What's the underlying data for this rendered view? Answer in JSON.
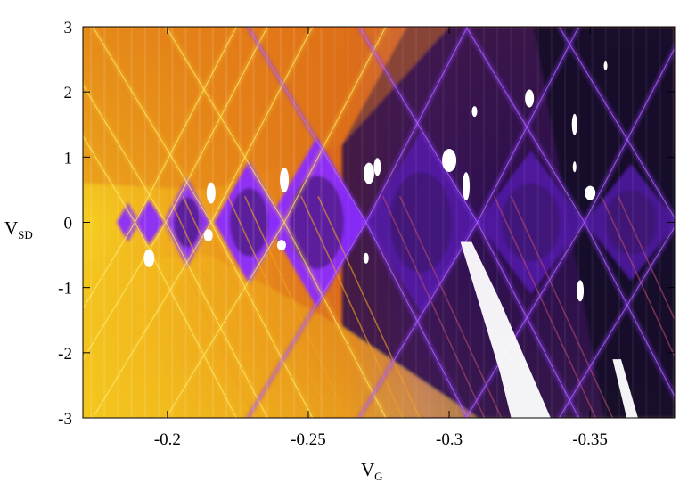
{
  "chart_data": {
    "type": "heatmap",
    "title": "",
    "xlabel": "V",
    "xlabel_sub": "G",
    "ylabel": "V",
    "ylabel_sub": "SD",
    "xlim": [
      -0.17,
      -0.38
    ],
    "ylim": [
      -3,
      3
    ],
    "xticks": [
      {
        "value": -0.2,
        "label": "-0.2"
      },
      {
        "value": -0.25,
        "label": "-0.25"
      },
      {
        "value": -0.3,
        "label": "-0.3"
      },
      {
        "value": -0.35,
        "label": "-0.35"
      }
    ],
    "yticks": [
      {
        "value": 3,
        "label": "3"
      },
      {
        "value": 2,
        "label": "2"
      },
      {
        "value": 1,
        "label": "1"
      },
      {
        "value": 0,
        "label": "0"
      },
      {
        "value": -1,
        "label": "-1"
      },
      {
        "value": -2,
        "label": "-2"
      },
      {
        "value": -3,
        "label": "-3"
      }
    ],
    "colormap": {
      "stops": [
        "#f5d21e",
        "#f0a818",
        "#d9651a",
        "#b03a2e",
        "#8a2cff",
        "#3a1260",
        "#1e0a34"
      ],
      "saturated": "#ffffff"
    },
    "diamonds": [
      {
        "vg": -0.186,
        "half_width_vg": 0.004,
        "height": 0.3
      },
      {
        "vg": -0.1935,
        "half_width_vg": 0.0055,
        "height": 0.35
      },
      {
        "vg": -0.207,
        "half_width_vg": 0.0085,
        "height": 0.7
      },
      {
        "vg": -0.229,
        "half_width_vg": 0.0125,
        "height": 0.95
      },
      {
        "vg": -0.253,
        "half_width_vg": 0.0175,
        "height": 1.3
      },
      {
        "vg": -0.29,
        "half_width_vg": 0.02,
        "height": 1.4
      },
      {
        "vg": -0.329,
        "half_width_vg": 0.019,
        "height": 1.1
      },
      {
        "vg": -0.3645,
        "half_width_vg": 0.0165,
        "height": 0.9
      }
    ],
    "degeneracy_points_vg": [
      -0.1885,
      -0.1995,
      -0.2155,
      -0.2415,
      -0.2705,
      -0.31,
      -0.348,
      -0.381
    ]
  }
}
